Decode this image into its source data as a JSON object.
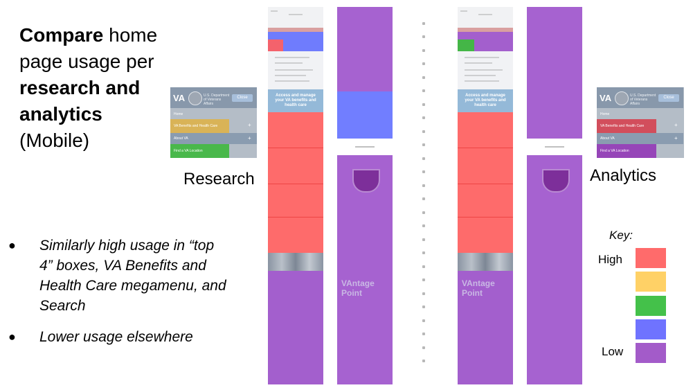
{
  "title": {
    "line1_bold": "Compare",
    "line1_rest": " home page usage per ",
    "line2_bold": "research and analytics",
    "line3": "(Mobile)"
  },
  "bullets": [
    "Similarly high usage in “top 4” boxes, VA Benefits and Health Care megamenu, and Search",
    "Lower usage elsewhere"
  ],
  "labels": {
    "research": "Research",
    "analytics": "Analytics"
  },
  "menu": {
    "logo": "VA",
    "department": "U.S. Department of Veterans Affairs",
    "close": "Close",
    "items": [
      "Home",
      "VA Benefits and Health Care",
      "About VA",
      "Find a VA Location"
    ]
  },
  "phone": {
    "banner": "Access and manage your VA benefits and health care",
    "news": "VAntage Point"
  },
  "key": {
    "title": "Key:",
    "high": "High",
    "low": "Low",
    "colors": [
      "#ff6b6b",
      "#ffd166",
      "#44c14a",
      "#6f73ff",
      "#a35bc9"
    ]
  }
}
